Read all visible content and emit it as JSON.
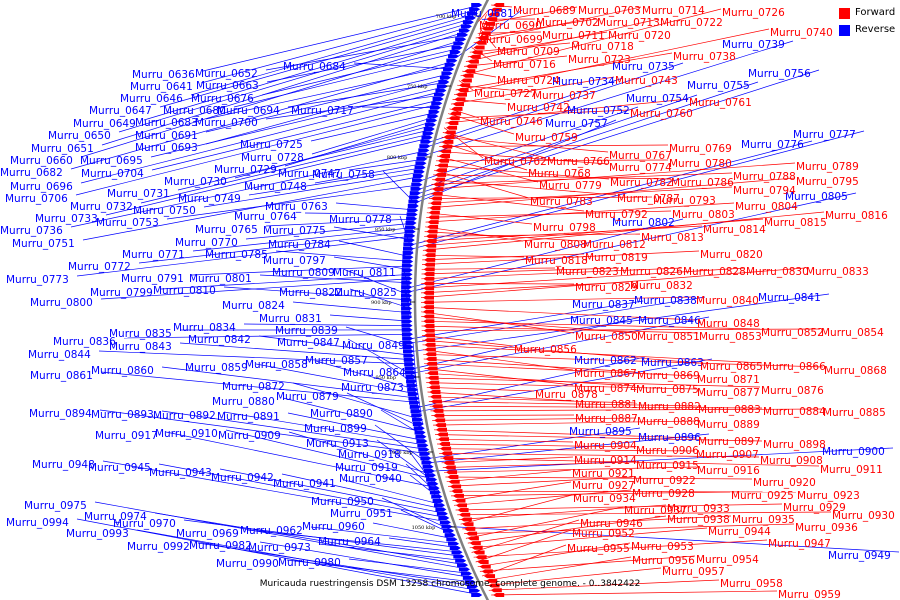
{
  "caption": "Muricauda ruestringensis DSM 13258 chromosome, complete genome. - 0..3842422",
  "legend": [
    {
      "label": "Forward",
      "color": "#ff0000"
    },
    {
      "label": "Reverse",
      "color": "#0000ff"
    }
  ],
  "ticks": [
    "700 kbp",
    "750 kbp",
    "800 kbp",
    "850 kbp",
    "900 kbp",
    "950 kbp",
    "1000 kbp",
    "1050 kbp"
  ],
  "genes_reverse": [
    "Murru_0636",
    "Murru_0641",
    "Murru_0646",
    "Murru_0647",
    "Murru_0649",
    "Murru_0650",
    "Murru_0651",
    "Murru_0652",
    "Murru_0660",
    "Murru_0663",
    "Murru_0676",
    "Murru_0680",
    "Murru_0681",
    "Murru_0682",
    "Murru_0683",
    "Murru_0684",
    "Murru_0691",
    "Murru_0693",
    "Murru_0694",
    "Murru_0695",
    "Murru_0696",
    "Murru_0700",
    "Murru_0704",
    "Murru_0706",
    "Murru_0717",
    "Murru_0725",
    "Murru_0728",
    "Murru_0729",
    "Murru_0730",
    "Murru_0731",
    "Murru_0732",
    "Murru_0733",
    "Murru_0734",
    "Murru_0735",
    "Murru_0736",
    "Murru_0739",
    "Murru_0747",
    "Murru_0748",
    "Murru_0749",
    "Murru_0750",
    "Murru_0751",
    "Murru_0752",
    "Murru_0753",
    "Murru_0754",
    "Murru_0755",
    "Murru_0756",
    "Murru_0757",
    "Murru_0758",
    "Murru_0763",
    "Murru_0764",
    "Murru_0765",
    "Murru_0770",
    "Murru_0771",
    "Murru_0772",
    "Murru_0773",
    "Murru_0775",
    "Murru_0776",
    "Murru_0777",
    "Murru_0778",
    "Murru_0784",
    "Murru_0785",
    "Murru_0791",
    "Murru_0797",
    "Murru_0799",
    "Murru_0800",
    "Murru_0801",
    "Murru_0802",
    "Murru_0805",
    "Murru_0809",
    "Murru_0810",
    "Murru_0811",
    "Murru_0822",
    "Murru_0824",
    "Murru_0825",
    "Murru_0831",
    "Murru_0834",
    "Murru_0835",
    "Murru_0836",
    "Murru_0837",
    "Murru_0838",
    "Murru_0839",
    "Murru_0841",
    "Murru_0842",
    "Murru_0843",
    "Murru_0844",
    "Murru_0845",
    "Murru_0846",
    "Murru_0847",
    "Murru_0849",
    "Murru_0857",
    "Murru_0858",
    "Murru_0859",
    "Murru_0860",
    "Murru_0861",
    "Murru_0862",
    "Murru_0863",
    "Murru_0864",
    "Murru_0872",
    "Murru_0873",
    "Murru_0879",
    "Murru_0880",
    "Murru_0890",
    "Murru_0891",
    "Murru_0892",
    "Murru_0893",
    "Murru_0894",
    "Murru_0895",
    "Murru_0896",
    "Murru_0899",
    "Murru_0900",
    "Murru_0909",
    "Murru_0910",
    "Murru_0913",
    "Murru_0917",
    "Murru_0918",
    "Murru_0919",
    "Murru_0940",
    "Murru_0941",
    "Murru_0942",
    "Murru_0943",
    "Murru_0945",
    "Murru_0948",
    "Murru_0949",
    "Murru_0950",
    "Murru_0951",
    "Murru_0960",
    "Murru_0962",
    "Murru_0964",
    "Murru_0969",
    "Murru_0970",
    "Murru_0973",
    "Murru_0974",
    "Murru_0975",
    "Murru_0980",
    "Murru_0982",
    "Murru_0990",
    "Murru_0992",
    "Murru_0993",
    "Murru_0994"
  ],
  "genes_forward": [
    "Murru_0689",
    "Murru_0690",
    "Murru_0699",
    "Murru_0702",
    "Murru_0703",
    "Murru_0709",
    "Murru_0711",
    "Murru_0713",
    "Murru_0714",
    "Murru_0716",
    "Murru_0718",
    "Murru_0720",
    "Murru_0722",
    "Murru_0723",
    "Murru_0724",
    "Murru_0726",
    "Murru_0727",
    "Murru_0737",
    "Murru_0738",
    "Murru_0740",
    "Murru_0742",
    "Murru_0743",
    "Murru_0746",
    "Murru_0759",
    "Murru_0760",
    "Murru_0761",
    "Murru_0762",
    "Murru_0766",
    "Murru_0767",
    "Murru_0768",
    "Murru_0769",
    "Murru_0774",
    "Murru_0779",
    "Murru_0780",
    "Murru_0782",
    "Murru_0783",
    "Murru_0786",
    "Murru_0787",
    "Murru_0788",
    "Murru_0789",
    "Murru_0792",
    "Murru_0793",
    "Murru_0794",
    "Murru_0795",
    "Murru_0798",
    "Murru_0803",
    "Murru_0804",
    "Murru_0808",
    "Murru_0812",
    "Murru_0813",
    "Murru_0814",
    "Murru_0815",
    "Murru_0816",
    "Murru_0818",
    "Murru_0819",
    "Murru_0820",
    "Murru_0823",
    "Murru_0826",
    "Murru_0828",
    "Murru_0829",
    "Murru_0830",
    "Murru_0832",
    "Murru_0833",
    "Murru_0840",
    "Murru_0848",
    "Murru_0850",
    "Murru_0851",
    "Murru_0852",
    "Murru_0853",
    "Murru_0854",
    "Murru_0856",
    "Murru_0865",
    "Murru_0866",
    "Murru_0867",
    "Murru_0868",
    "Murru_0869",
    "Murru_0871",
    "Murru_0874",
    "Murru_0875",
    "Murru_0876",
    "Murru_0877",
    "Murru_0878",
    "Murru_0881",
    "Murru_0882",
    "Murru_0883",
    "Murru_0884",
    "Murru_0885",
    "Murru_0887",
    "Murru_0888",
    "Murru_0889",
    "Murru_0897",
    "Murru_0898",
    "Murru_0904",
    "Murru_0906",
    "Murru_0907",
    "Murru_0908",
    "Murru_0911",
    "Murru_0914",
    "Murru_0915",
    "Murru_0916",
    "Murru_0920",
    "Murru_0921",
    "Murru_0922",
    "Murru_0923",
    "Murru_0925",
    "Murru_0927",
    "Murru_0928",
    "Murru_0929",
    "Murru_0930",
    "Murru_0933",
    "Murru_0934",
    "Murru_0935",
    "Murru_0936",
    "Murru_0937",
    "Murru_0938",
    "Murru_0944",
    "Murru_0946",
    "Murru_0947",
    "Murru_0952",
    "Murru_0953",
    "Murru_0954",
    "Murru_0955",
    "Murru_0956",
    "Murru_0957",
    "Murru_0958",
    "Murru_0959"
  ]
}
